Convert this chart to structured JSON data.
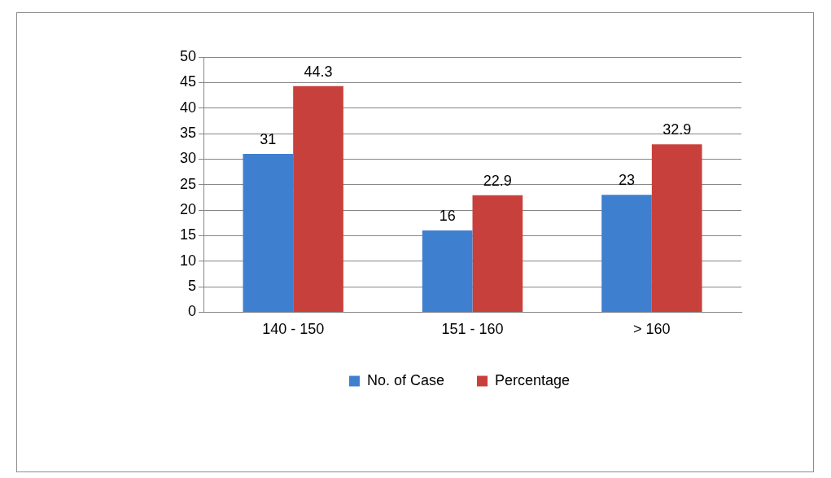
{
  "chart_data": {
    "type": "bar",
    "categories": [
      "140 - 150",
      "151 - 160",
      "> 160"
    ],
    "series": [
      {
        "name": "No. of Case",
        "color": "#3f7fd0",
        "values": [
          31,
          16,
          23
        ]
      },
      {
        "name": "Percentage",
        "color": "#c8403c",
        "values": [
          44.3,
          22.9,
          32.9
        ]
      }
    ],
    "ylim": [
      0,
      50
    ],
    "yticks": [
      0,
      5,
      10,
      15,
      20,
      25,
      30,
      35,
      40,
      45,
      50
    ],
    "grid": "y",
    "legend": "bottom",
    "data_labels": true
  }
}
